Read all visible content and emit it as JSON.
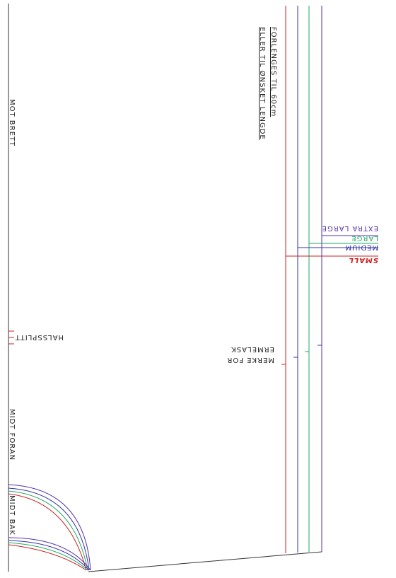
{
  "notes": {
    "extend": "FORLENGES TIL 60cm",
    "extend_alt": "ELLER TIL ØNSKET LENGDE",
    "fold": "MOT BRETT",
    "neck_slit": "HALSSPLITT",
    "sleeve_mark_1": "MERKE FOR",
    "sleeve_mark_2": "ERMELASK",
    "center_front": "MIDT FORAN",
    "center_back": "MIDT BAK"
  },
  "sizes": {
    "extra_large": "EXTRA LARGE",
    "large": "LARGE",
    "medium": "MEDIUM",
    "small": "SMALL"
  }
}
